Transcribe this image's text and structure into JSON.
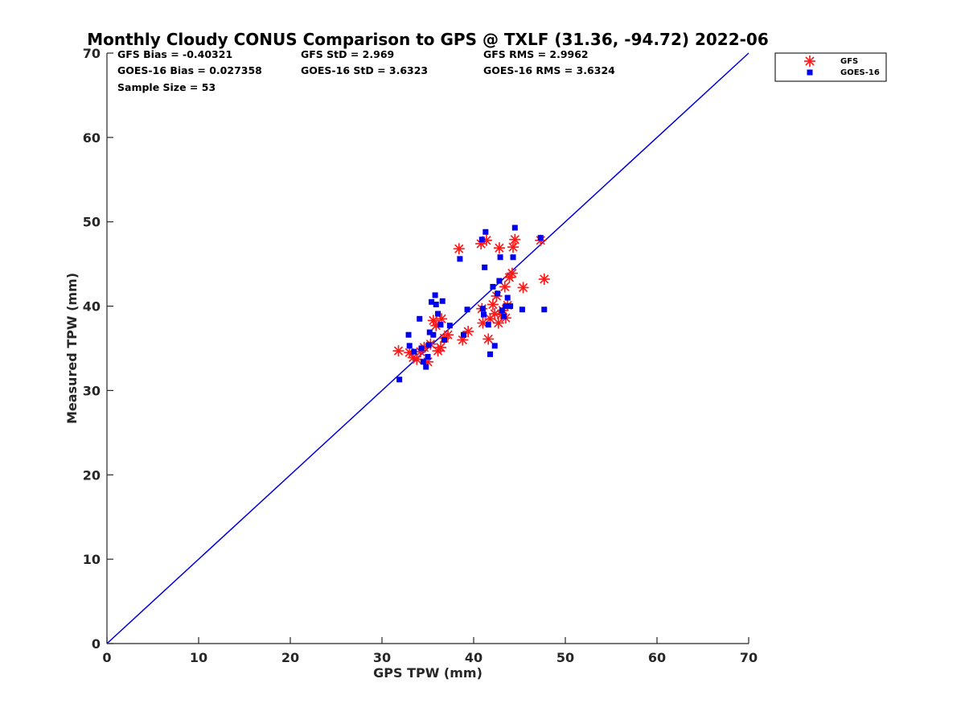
{
  "chart_data": {
    "type": "scatter",
    "title": "Monthly Cloudy CONUS Comparison to GPS @ TXLF (31.36, -94.72) 2022-06",
    "xlabel": "GPS TPW (mm)",
    "ylabel": "Measured TPW (mm)",
    "xlim": [
      0,
      70
    ],
    "ylim": [
      0,
      70
    ],
    "xticks": [
      0,
      10,
      20,
      30,
      40,
      50,
      60,
      70
    ],
    "yticks": [
      0,
      10,
      20,
      30,
      40,
      50,
      60,
      70
    ],
    "legend_position": "outside-top-right",
    "reference_line": {
      "name": "1:1 line",
      "x": [
        0,
        70
      ],
      "y": [
        0,
        70
      ],
      "color": "#0000dd"
    },
    "stats": [
      [
        "GFS Bias = -0.40321",
        "GFS StD = 2.969",
        "GFS RMS = 2.9962"
      ],
      [
        "GOES-16 Bias = 0.027358",
        "GOES-16 StD = 3.6323",
        "GOES-16 RMS = 3.6324"
      ],
      [
        "Sample Size = 53"
      ]
    ],
    "series": [
      {
        "name": "GFS",
        "marker": "asterisk",
        "color": "#ff1a1a",
        "points": [
          [
            31.8,
            34.7
          ],
          [
            33.0,
            34.5
          ],
          [
            33.4,
            33.9
          ],
          [
            33.8,
            33.7
          ],
          [
            34.2,
            34.6
          ],
          [
            34.6,
            35.1
          ],
          [
            35.0,
            33.4
          ],
          [
            35.3,
            35.5
          ],
          [
            35.6,
            38.3
          ],
          [
            35.9,
            37.7
          ],
          [
            36.1,
            34.7
          ],
          [
            36.4,
            35.1
          ],
          [
            36.5,
            38.5
          ],
          [
            36.8,
            36.2
          ],
          [
            37.2,
            36.6
          ],
          [
            38.4,
            46.8
          ],
          [
            38.8,
            36.0
          ],
          [
            39.4,
            37.0
          ],
          [
            40.8,
            47.4
          ],
          [
            40.9,
            39.7
          ],
          [
            41.0,
            38.0
          ],
          [
            41.4,
            47.8
          ],
          [
            41.6,
            36.1
          ],
          [
            41.8,
            38.5
          ],
          [
            42.1,
            40.2
          ],
          [
            42.3,
            39.1
          ],
          [
            42.5,
            41.2
          ],
          [
            42.7,
            38.0
          ],
          [
            42.8,
            46.9
          ],
          [
            43.0,
            39.0
          ],
          [
            43.2,
            39.5
          ],
          [
            43.4,
            42.3
          ],
          [
            43.5,
            38.6
          ],
          [
            43.7,
            40.1
          ],
          [
            43.9,
            43.4
          ],
          [
            44.2,
            43.9
          ],
          [
            44.3,
            47.0
          ],
          [
            44.5,
            47.9
          ],
          [
            45.4,
            42.2
          ],
          [
            47.3,
            47.8
          ],
          [
            47.7,
            43.2
          ]
        ]
      },
      {
        "name": "GOES-16",
        "marker": "square",
        "color": "#0000ee",
        "points": [
          [
            31.9,
            31.3
          ],
          [
            32.9,
            36.6
          ],
          [
            33.0,
            35.3
          ],
          [
            33.5,
            34.6
          ],
          [
            34.1,
            38.5
          ],
          [
            34.3,
            35.0
          ],
          [
            34.5,
            33.4
          ],
          [
            34.8,
            32.8
          ],
          [
            35.0,
            34.0
          ],
          [
            35.1,
            35.4
          ],
          [
            35.2,
            36.9
          ],
          [
            35.4,
            40.5
          ],
          [
            35.6,
            36.6
          ],
          [
            35.8,
            41.3
          ],
          [
            35.9,
            40.2
          ],
          [
            36.1,
            39.1
          ],
          [
            36.4,
            37.8
          ],
          [
            36.6,
            40.6
          ],
          [
            36.8,
            36.0
          ],
          [
            37.4,
            37.7
          ],
          [
            38.5,
            45.6
          ],
          [
            38.9,
            36.6
          ],
          [
            39.3,
            39.6
          ],
          [
            40.9,
            47.9
          ],
          [
            41.0,
            39.7
          ],
          [
            41.1,
            39.0
          ],
          [
            41.2,
            44.6
          ],
          [
            41.3,
            48.8
          ],
          [
            41.6,
            37.8
          ],
          [
            41.8,
            34.3
          ],
          [
            42.1,
            42.3
          ],
          [
            42.3,
            35.3
          ],
          [
            42.6,
            41.5
          ],
          [
            42.8,
            43.0
          ],
          [
            42.9,
            45.8
          ],
          [
            43.1,
            39.5
          ],
          [
            43.3,
            38.8
          ],
          [
            43.5,
            40.0
          ],
          [
            43.7,
            41.0
          ],
          [
            44.0,
            40.0
          ],
          [
            44.3,
            45.8
          ],
          [
            44.5,
            49.3
          ],
          [
            45.3,
            39.6
          ],
          [
            47.3,
            48.1
          ],
          [
            47.7,
            39.6
          ]
        ]
      }
    ]
  }
}
